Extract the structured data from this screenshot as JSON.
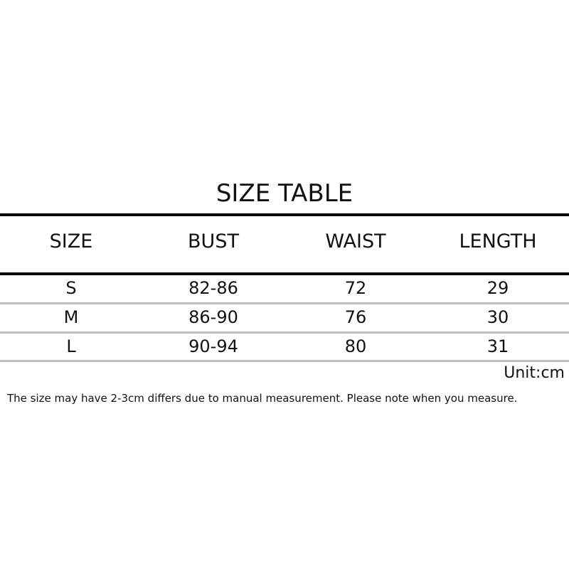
{
  "title": "SIZE TABLE",
  "table": {
    "headers": [
      "SIZE",
      "BUST",
      "WAIST",
      "LENGTH"
    ],
    "rows": [
      [
        "S",
        "82-86",
        "72",
        "29"
      ],
      [
        "M",
        "86-90",
        "76",
        "30"
      ],
      [
        "L",
        "90-94",
        "80",
        "31"
      ]
    ]
  },
  "unit": "Unit:cm",
  "note": "The size may have 2-3cm differs due to manual measurement. Please note when you measure."
}
